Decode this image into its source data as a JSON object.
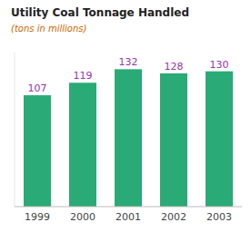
{
  "chart_data": {
    "type": "bar",
    "title": "Utility Coal Tonnage Handled",
    "subtitle": "(tons in millions)",
    "categories": [
      "1999",
      "2000",
      "2001",
      "2002",
      "2003"
    ],
    "values": [
      107,
      119,
      132,
      128,
      130
    ],
    "color": "#2aaa76",
    "ylim": [
      0,
      148
    ],
    "grid": false,
    "data_labels": true,
    "tick_labels": "x"
  }
}
